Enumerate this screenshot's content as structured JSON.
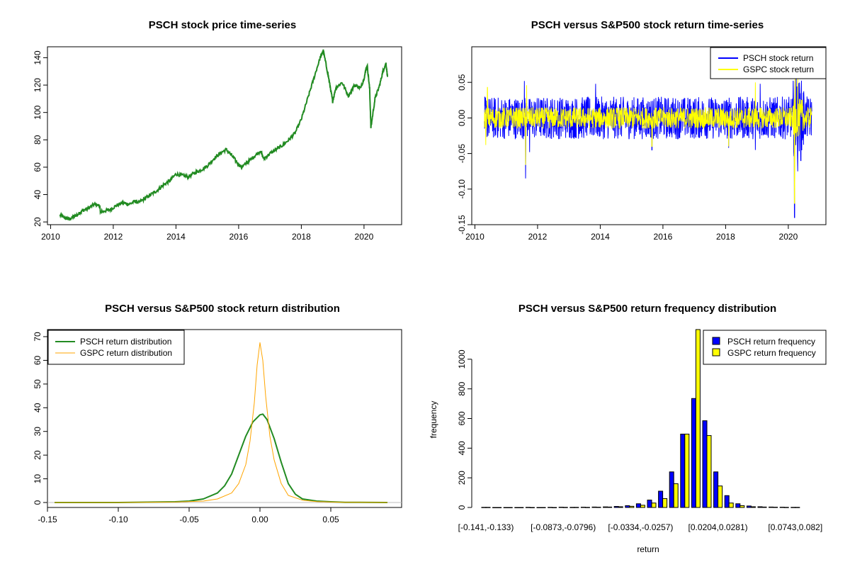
{
  "chart_data": [
    {
      "id": "price",
      "type": "line",
      "title": "PSCH stock price time-series",
      "xlabel": "",
      "ylabel": "",
      "xlim": [
        2009.9,
        2021.2
      ],
      "ylim": [
        18,
        148
      ],
      "xticks": [
        2010,
        2012,
        2014,
        2016,
        2018,
        2020
      ],
      "yticks": [
        20,
        40,
        60,
        80,
        100,
        120,
        140
      ],
      "color": "#228b22",
      "series": [
        {
          "x": [
            2010.3,
            2010.45,
            2010.6,
            2010.75,
            2010.9,
            2011.0,
            2011.2,
            2011.4,
            2011.55,
            2011.6,
            2011.7,
            2011.9,
            2012.1,
            2012.3,
            2012.5,
            2012.7,
            2012.8,
            2013.0,
            2013.2,
            2013.4,
            2013.6,
            2013.8,
            2014.0,
            2014.2,
            2014.4,
            2014.6,
            2014.8,
            2015.0,
            2015.2,
            2015.4,
            2015.6,
            2015.8,
            2016.0,
            2016.1,
            2016.3,
            2016.5,
            2016.7,
            2016.8,
            2017.0,
            2017.2,
            2017.4,
            2017.6,
            2017.8,
            2018.0,
            2018.2,
            2018.4,
            2018.6,
            2018.7,
            2018.85,
            2018.95,
            2019.0,
            2019.1,
            2019.3,
            2019.5,
            2019.7,
            2019.9,
            2020.0,
            2020.1,
            2020.18,
            2020.22,
            2020.35,
            2020.5,
            2020.6,
            2020.7,
            2020.75
          ],
          "y": [
            25,
            23,
            22,
            24,
            26,
            28,
            30,
            33,
            32,
            27,
            28,
            29,
            32,
            34,
            33,
            35,
            34,
            37,
            40,
            43,
            47,
            50,
            55,
            54,
            53,
            56,
            58,
            61,
            66,
            70,
            73,
            68,
            62,
            60,
            64,
            68,
            72,
            66,
            70,
            73,
            76,
            80,
            85,
            95,
            110,
            125,
            140,
            145,
            128,
            115,
            108,
            118,
            122,
            112,
            120,
            118,
            125,
            135,
            117,
            89,
            110,
            120,
            130,
            136,
            126
          ]
        }
      ]
    },
    {
      "id": "returns",
      "type": "line",
      "title": "PSCH versus S&P500 stock return time-series",
      "xlabel": "",
      "ylabel": "",
      "xlim": [
        2009.9,
        2021.2
      ],
      "ylim": [
        -0.15,
        0.1
      ],
      "xticks": [
        2010,
        2012,
        2014,
        2016,
        2018,
        2020
      ],
      "yticks": [
        -0.15,
        -0.1,
        -0.05,
        0.0,
        0.05
      ],
      "ytick_labels": [
        "-0.15",
        "-0.10",
        "-0.05",
        "0.00",
        "0.05"
      ],
      "legend": {
        "position": "top-right",
        "entries": [
          {
            "label": "PSCH stock return",
            "color": "#0000ff"
          },
          {
            "label": "GSPC stock return",
            "color": "#ffff00"
          }
        ]
      },
      "series": [
        {
          "name": "PSCH stock return",
          "color": "#0000ff",
          "typical_range": [
            -0.03,
            0.03
          ],
          "spikes": [
            {
              "x": 2011.62,
              "y": -0.085
            },
            {
              "x": 2011.58,
              "y": 0.052
            },
            {
              "x": 2011.75,
              "y": -0.048
            },
            {
              "x": 2013.85,
              "y": 0.048
            },
            {
              "x": 2015.65,
              "y": -0.045
            },
            {
              "x": 2018.1,
              "y": -0.042
            },
            {
              "x": 2018.95,
              "y": -0.045
            },
            {
              "x": 2019.1,
              "y": 0.048
            },
            {
              "x": 2020.2,
              "y": -0.14
            },
            {
              "x": 2020.25,
              "y": 0.08
            },
            {
              "x": 2020.3,
              "y": -0.075
            },
            {
              "x": 2020.4,
              "y": -0.06
            }
          ]
        },
        {
          "name": "GSPC stock return",
          "color": "#ffff00",
          "typical_range": [
            -0.015,
            0.015
          ],
          "spikes": [
            {
              "x": 2010.35,
              "y": -0.038
            },
            {
              "x": 2010.4,
              "y": 0.043
            },
            {
              "x": 2011.62,
              "y": -0.066
            },
            {
              "x": 2011.65,
              "y": 0.046
            },
            {
              "x": 2015.65,
              "y": -0.04
            },
            {
              "x": 2018.1,
              "y": -0.04
            },
            {
              "x": 2018.95,
              "y": 0.05
            },
            {
              "x": 2020.2,
              "y": -0.12
            },
            {
              "x": 2020.22,
              "y": 0.09
            },
            {
              "x": 2020.3,
              "y": 0.06
            }
          ]
        }
      ]
    },
    {
      "id": "density",
      "type": "line",
      "title": "PSCH versus S&P500 stock return distribution",
      "xlabel": "",
      "ylabel": "",
      "xlim": [
        -0.15,
        0.1
      ],
      "ylim": [
        0,
        70
      ],
      "xticks": [
        -0.15,
        -0.1,
        -0.05,
        0.0,
        0.05
      ],
      "xtick_labels": [
        "-0.15",
        "-0.10",
        "-0.05",
        "0.00",
        "0.05"
      ],
      "yticks": [
        0,
        10,
        20,
        30,
        40,
        50,
        60,
        70
      ],
      "legend": {
        "position": "top-left",
        "entries": [
          {
            "label": "PSCH return distribution",
            "color": "#228b22"
          },
          {
            "label": "GSPC return distribution",
            "color": "#ffa500"
          }
        ]
      },
      "series": [
        {
          "name": "PSCH return distribution",
          "color": "#228b22",
          "x": [
            -0.145,
            -0.1,
            -0.06,
            -0.05,
            -0.04,
            -0.03,
            -0.025,
            -0.02,
            -0.015,
            -0.01,
            -0.005,
            0.0,
            0.002,
            0.005,
            0.01,
            0.015,
            0.02,
            0.025,
            0.03,
            0.04,
            0.05,
            0.06,
            0.09
          ],
          "y": [
            0,
            0,
            0.3,
            0.6,
            1.5,
            4,
            7,
            12,
            20,
            28,
            34,
            37,
            37.3,
            35,
            27,
            17,
            8,
            3.5,
            1.5,
            0.6,
            0.3,
            0.1,
            0
          ]
        },
        {
          "name": "GSPC return distribution",
          "color": "#ffa500",
          "x": [
            -0.145,
            -0.1,
            -0.06,
            -0.04,
            -0.03,
            -0.02,
            -0.015,
            -0.01,
            -0.007,
            -0.004,
            -0.002,
            0.0,
            0.002,
            0.004,
            0.007,
            0.01,
            0.015,
            0.02,
            0.03,
            0.04,
            0.06,
            0.09
          ],
          "y": [
            0,
            0,
            0.2,
            0.6,
            1.5,
            4,
            8,
            16,
            26,
            42,
            58,
            67.5,
            60,
            45,
            28,
            18,
            8,
            3,
            1,
            0.4,
            0.1,
            0
          ]
        }
      ]
    },
    {
      "id": "frequency",
      "type": "bar",
      "title": "PSCH versus S&P500 return frequency distribution",
      "xlabel": "return",
      "ylabel": "frequency",
      "ylim": [
        0,
        1200
      ],
      "yticks": [
        0,
        200,
        400,
        600,
        800,
        1000
      ],
      "xtick_labels": [
        {
          "index": 0,
          "label": "[-0.141,-0.133)"
        },
        {
          "index": 7,
          "label": "[-0.0873,-0.0796)"
        },
        {
          "index": 14,
          "label": "[-0.0334,-0.0257)"
        },
        {
          "index": 21,
          "label": "[0.0204,0.0281)"
        },
        {
          "index": 28,
          "label": "[0.0743,0.082]"
        }
      ],
      "legend": {
        "position": "top-right",
        "entries": [
          {
            "label": "PSCH return frequency",
            "color": "#0000ff"
          },
          {
            "label": "GSPC return frequency",
            "color": "#ffff00"
          }
        ]
      },
      "series": [
        {
          "name": "PSCH return frequency",
          "color": "#0000ff",
          "values": [
            1,
            0,
            0,
            0,
            1,
            0,
            1,
            2,
            1,
            2,
            3,
            4,
            7,
            12,
            25,
            50,
            110,
            240,
            495,
            735,
            585,
            240,
            80,
            25,
            10,
            5,
            3,
            2,
            1
          ]
        },
        {
          "name": "GSPC return frequency",
          "color": "#ffff00",
          "values": [
            1,
            0,
            0,
            0,
            0,
            0,
            0,
            1,
            1,
            1,
            2,
            3,
            5,
            8,
            15,
            30,
            60,
            160,
            495,
            1300,
            485,
            145,
            30,
            12,
            5,
            3,
            2,
            1,
            1
          ]
        }
      ]
    }
  ]
}
